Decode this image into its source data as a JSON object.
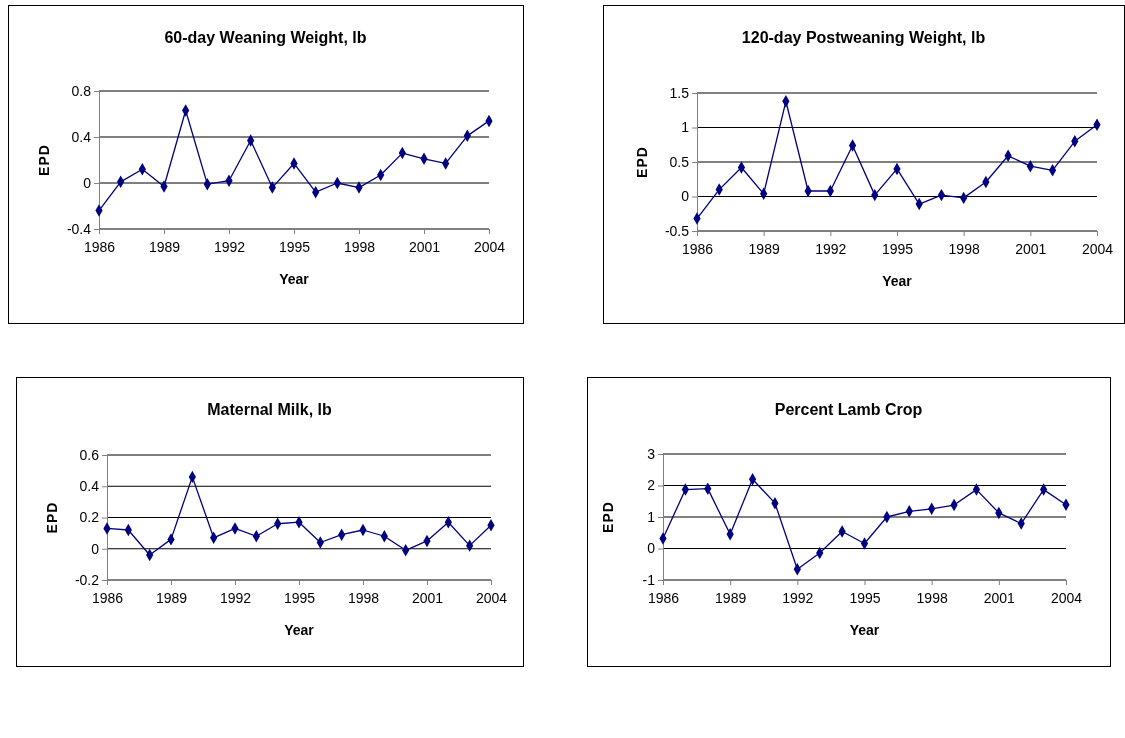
{
  "chart_data": [
    {
      "type": "line",
      "title": "60-day Weaning Weight, lb",
      "xlabel": "Year",
      "ylabel": "EPD",
      "x": [
        1986,
        1987,
        1988,
        1989,
        1990,
        1991,
        1992,
        1993,
        1994,
        1995,
        1996,
        1997,
        1998,
        1999,
        2000,
        2001,
        2002,
        2003,
        2004
      ],
      "series": [
        {
          "color": "#000080",
          "values": [
            -0.24,
            0.01,
            0.12,
            -0.03,
            0.63,
            -0.01,
            0.02,
            0.37,
            -0.04,
            0.17,
            -0.08,
            0.0,
            -0.04,
            0.07,
            0.26,
            0.21,
            0.17,
            0.41,
            0.54
          ]
        }
      ],
      "xlim": [
        1986,
        2004
      ],
      "xticks": [
        1986,
        1989,
        1992,
        1995,
        1998,
        2001,
        2004
      ],
      "ylim": [
        -0.4,
        0.8
      ],
      "yticks": [
        -0.4,
        0,
        0.4,
        0.8
      ],
      "grid": "y",
      "marker": "diamond",
      "line_style": "solid"
    },
    {
      "type": "line",
      "title": "120-day Postweaning Weight, lb",
      "xlabel": "Year",
      "ylabel": "EPD",
      "x": [
        1986,
        1987,
        1988,
        1989,
        1990,
        1991,
        1992,
        1993,
        1994,
        1995,
        1996,
        1997,
        1998,
        1999,
        2000,
        2001,
        2002,
        2003,
        2004
      ],
      "series": [
        {
          "color": "#000080",
          "values": [
            -0.32,
            0.1,
            0.42,
            0.04,
            1.38,
            0.08,
            0.08,
            0.74,
            0.02,
            0.4,
            -0.11,
            0.02,
            -0.02,
            0.21,
            0.59,
            0.44,
            0.38,
            0.8,
            1.04
          ]
        }
      ],
      "xlim": [
        1986,
        2004
      ],
      "xticks": [
        1986,
        1989,
        1992,
        1995,
        1998,
        2001,
        2004
      ],
      "ylim": [
        -0.5,
        1.5
      ],
      "yticks": [
        -0.5,
        0,
        0.5,
        1,
        1.5
      ],
      "grid": "y",
      "marker": "diamond",
      "line_style": "solid"
    },
    {
      "type": "line",
      "title": "Maternal Milk, lb",
      "xlabel": "Year",
      "ylabel": "EPD",
      "x": [
        1986,
        1987,
        1988,
        1989,
        1990,
        1991,
        1992,
        1993,
        1994,
        1995,
        1996,
        1997,
        1998,
        1999,
        2000,
        2001,
        2002,
        2003,
        2004
      ],
      "series": [
        {
          "color": "#000080",
          "values": [
            0.13,
            0.12,
            -0.04,
            0.06,
            0.46,
            0.07,
            0.13,
            0.08,
            0.16,
            0.17,
            0.04,
            0.09,
            0.12,
            0.08,
            -0.01,
            0.05,
            0.17,
            0.02,
            0.15
          ]
        }
      ],
      "xlim": [
        1986,
        2004
      ],
      "xticks": [
        1986,
        1989,
        1992,
        1995,
        1998,
        2001,
        2004
      ],
      "ylim": [
        -0.2,
        0.6
      ],
      "yticks": [
        -0.2,
        0,
        0.2,
        0.4,
        0.6
      ],
      "grid": "y",
      "marker": "diamond",
      "line_style": "solid"
    },
    {
      "type": "line",
      "title": "Percent Lamb Crop",
      "xlabel": "Year",
      "ylabel": "EPD",
      "x": [
        1986,
        1987,
        1988,
        1989,
        1990,
        1991,
        1992,
        1993,
        1994,
        1995,
        1996,
        1997,
        1998,
        1999,
        2000,
        2001,
        2002,
        2003,
        2004
      ],
      "series": [
        {
          "color": "#000080",
          "values": [
            0.32,
            1.87,
            1.9,
            0.45,
            2.2,
            1.44,
            -0.66,
            -0.14,
            0.54,
            0.16,
            1.0,
            1.18,
            1.26,
            1.38,
            1.87,
            1.13,
            0.79,
            1.87,
            1.39
          ]
        }
      ],
      "xlim": [
        1986,
        2004
      ],
      "xticks": [
        1986,
        1989,
        1992,
        1995,
        1998,
        2001,
        2004
      ],
      "ylim": [
        -1,
        3
      ],
      "yticks": [
        -1,
        0,
        1,
        2,
        3
      ],
      "grid": "y",
      "marker": "diamond",
      "line_style": "solid"
    }
  ]
}
